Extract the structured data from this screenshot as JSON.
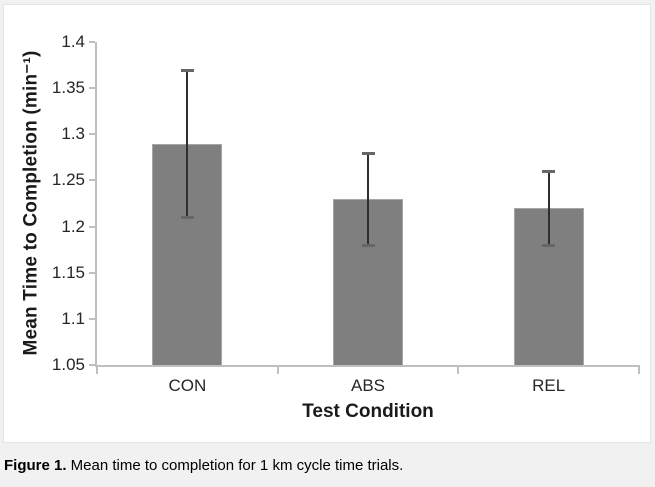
{
  "figure": {
    "caption_label": "Figure 1.",
    "caption_text": " Mean time to completion for 1 km cycle time trials."
  },
  "chart_data": {
    "type": "bar",
    "title": "",
    "categories": [
      "CON",
      "ABS",
      "REL"
    ],
    "values": [
      1.29,
      1.23,
      1.22
    ],
    "error_upper": [
      1.37,
      1.28,
      1.26
    ],
    "error_lower": [
      1.21,
      1.18,
      1.18
    ],
    "xlabel": "Test Condition",
    "ylabel": "Mean Time to Completion (min⁻¹)",
    "ylim": [
      1.05,
      1.4
    ],
    "yticks": [
      1.4,
      1.35,
      1.3,
      1.25,
      1.2,
      1.15,
      1.1,
      1.05
    ],
    "ytick_labels": [
      "1.4",
      "1.35",
      "1.3",
      "1.25",
      "1.2",
      "1.15",
      "1.1",
      "1.05"
    ],
    "bar_color": "#7f7f7f",
    "bar_border_color": "#a6a6a6",
    "axis_color": "#bfbfbf",
    "error_line_color": "#2e2e2e",
    "error_cap_color": "#666666",
    "grid": false,
    "legend": false
  }
}
